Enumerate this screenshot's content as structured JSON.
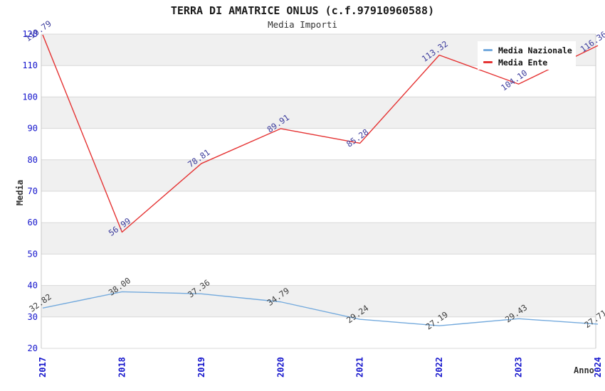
{
  "page": {
    "background": "#ffffff"
  },
  "chart_data": {
    "type": "line",
    "title": "TERRA DI AMATRICE ONLUS (c.f.97910960588)",
    "subtitle": "Media Importi",
    "xlabel": "Anno",
    "ylabel": "Media",
    "categories": [
      "2017",
      "2018",
      "2019",
      "2020",
      "2021",
      "2022",
      "2023",
      "2024"
    ],
    "series": [
      {
        "name": "Media Nazionale",
        "color": "#74aadd",
        "label_color": "#3d3d3d",
        "values": [
          32.82,
          38.0,
          37.36,
          34.79,
          29.24,
          27.19,
          29.43,
          27.71
        ]
      },
      {
        "name": "Media Ente",
        "color": "#e53333",
        "label_color": "#3b3b9c",
        "values": [
          119.79,
          56.99,
          78.81,
          89.91,
          85.28,
          113.32,
          104.1,
          116.36
        ]
      }
    ],
    "ylim": [
      20,
      120
    ],
    "ytick_step": 10,
    "yticks": [
      20,
      30,
      40,
      50,
      60,
      70,
      80,
      90,
      100,
      110,
      120
    ],
    "grid": true,
    "grid_color": "#d8d8d8",
    "border_color": "#c8c8c8",
    "band_colors": [
      "#f0f0f0",
      "#ffffff"
    ],
    "axis_tick_color": "#1414cc",
    "legend_position": "top-right",
    "data_label_decimals": 2
  }
}
